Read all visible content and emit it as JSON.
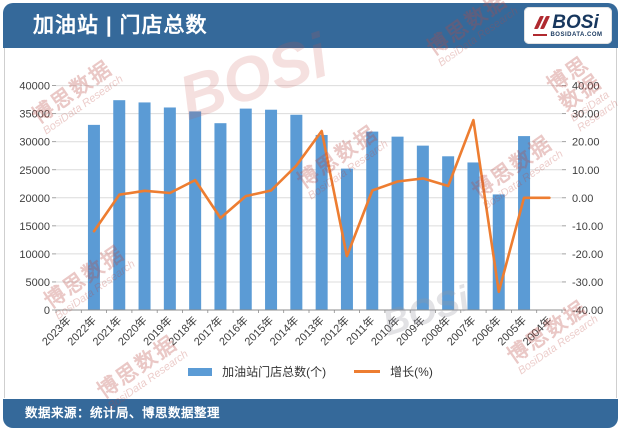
{
  "header": {
    "title": "加油站 | 门店总数",
    "logo_text": "BOSi",
    "logo_domain": "BOSIDATA.COM"
  },
  "legend": {
    "bar_label": "加油站门店总数(个)",
    "line_label": "增长(%)"
  },
  "footer": {
    "source_text": "数据来源：统计局、博思数据整理"
  },
  "watermark": {
    "cn": "博思数据",
    "en": "BosiData Research",
    "logo": "BOSi"
  },
  "colors": {
    "bar": "#5B9BD5",
    "line": "#ED7D31",
    "header_bg": "#35699A",
    "grid": "#DCDCDC",
    "axis": "#8C8C8C",
    "text": "#404040"
  },
  "chart_data": {
    "type": "bar",
    "subtype": "combo-bar-line-dual-axis",
    "categories": [
      "2023年",
      "2022年",
      "2021年",
      "2020年",
      "2019年",
      "2018年",
      "2017年",
      "2016年",
      "2015年",
      "2014年",
      "2013年",
      "2012年",
      "2011年",
      "2010年",
      "2009年",
      "2008年",
      "2007年",
      "2006年",
      "2005年",
      "2004年"
    ],
    "series": [
      {
        "name": "加油站门店总数(个)",
        "type": "bar",
        "axis": "left",
        "color": "#5B9BD5",
        "values": [
          null,
          33000,
          37400,
          37000,
          36100,
          35400,
          33300,
          35900,
          35700,
          34800,
          31200,
          25200,
          31800,
          30900,
          29300,
          27400,
          26300,
          20600,
          31000,
          null
        ]
      },
      {
        "name": "增长(%)",
        "type": "line",
        "axis": "right",
        "color": "#ED7D31",
        "values": [
          null,
          -11.9,
          1.1,
          2.5,
          1.7,
          6.3,
          -7.2,
          0.6,
          2.6,
          11.5,
          23.8,
          -20.8,
          2.6,
          5.8,
          6.9,
          4.2,
          27.7,
          -33.5,
          0.0,
          0.0
        ]
      }
    ],
    "left_axis": {
      "min": 0,
      "max": 40000,
      "step": 5000,
      "tick_labels": [
        "0",
        "5000",
        "10000",
        "15000",
        "20000",
        "25000",
        "30000",
        "35000",
        "40000"
      ]
    },
    "right_axis": {
      "min": -40,
      "max": 40,
      "step": 10,
      "tick_labels": [
        "-40.00",
        "-30.00",
        "-20.00",
        "-10.00",
        "0.00",
        "10.00",
        "20.00",
        "30.00",
        "40.00"
      ]
    },
    "grid": true,
    "legend_position": "bottom",
    "title": "加油站 | 门店总数"
  }
}
